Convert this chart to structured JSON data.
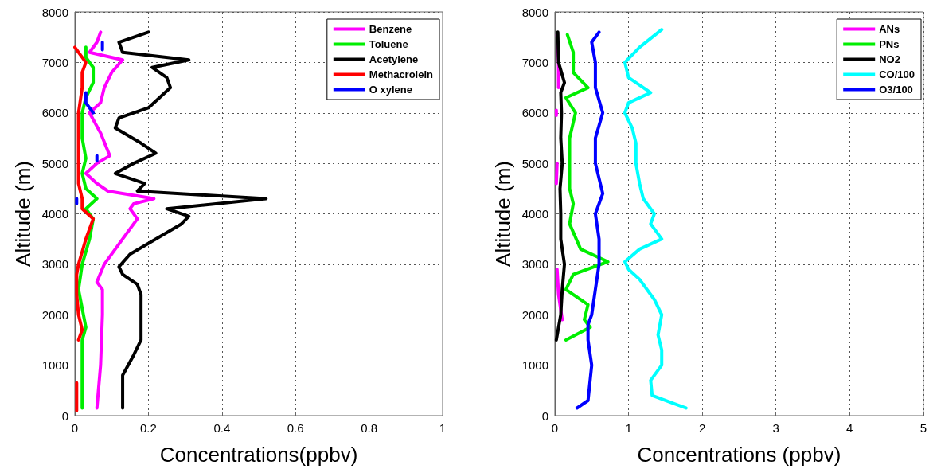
{
  "chart_data": [
    {
      "type": "line",
      "xlabel": "Concentrations(ppbv)",
      "ylabel": "Altitude (m)",
      "xlim": [
        0,
        1
      ],
      "xticks": [
        0,
        0.2,
        0.4,
        0.6,
        0.8,
        1
      ],
      "ylim": [
        0,
        8000
      ],
      "yticks": [
        0,
        1000,
        2000,
        3000,
        4000,
        5000,
        6000,
        7000,
        8000
      ],
      "grid": true,
      "legend": "top right",
      "marker": "none",
      "line_style": "solid",
      "series": [
        {
          "name": "Benzene",
          "color": "#ff00ff",
          "x": [
            0.06,
            0.07,
            0.075,
            0.075,
            0.06,
            0.08,
            0.13,
            0.16,
            0.17,
            0.15,
            0.16,
            0.215,
            0.09,
            0.06,
            0.03,
            0.06,
            0.095,
            0.07,
            0.04,
            0.07,
            0.08,
            0.1,
            0.13,
            0.04,
            0.06,
            0.07
          ],
          "values": [
            150,
            1000,
            2000,
            2500,
            2650,
            3000,
            3500,
            3800,
            3900,
            4100,
            4200,
            4300,
            4450,
            4600,
            4800,
            5000,
            5150,
            5600,
            6000,
            6200,
            6500,
            6800,
            7050,
            7200,
            7400,
            7600
          ]
        },
        {
          "name": "Toluene",
          "color": "#00ee00",
          "x": [
            0.02,
            0.02,
            0.03,
            0.01,
            0.02,
            0.04,
            0.05,
            0.03,
            0.06,
            0.03,
            0.02,
            0.03,
            0.02,
            0.02,
            0.03,
            0.05,
            0.05,
            0.03,
            0.03
          ],
          "values": [
            150,
            1500,
            1750,
            2500,
            3000,
            3500,
            3900,
            4100,
            4300,
            4500,
            4800,
            5100,
            5500,
            6000,
            6300,
            6600,
            6900,
            7100,
            7300
          ]
        },
        {
          "name": "Acetylene",
          "color": "#000000",
          "x": [
            0.13,
            0.13,
            0.16,
            0.18,
            0.18,
            0.18,
            0.17,
            0.13,
            0.12,
            0.15,
            0.22,
            0.29,
            0.31,
            0.25,
            0.52,
            0.17,
            0.19,
            0.11,
            0.16,
            0.22,
            0.18,
            0.11,
            0.12,
            0.2,
            0.23,
            0.26,
            0.25,
            0.21,
            0.31,
            0.13,
            0.12,
            0.2
          ],
          "values": [
            150,
            800,
            1200,
            1500,
            2000,
            2400,
            2600,
            2800,
            2950,
            3200,
            3500,
            3800,
            3950,
            4100,
            4300,
            4450,
            4600,
            4800,
            5000,
            5200,
            5400,
            5700,
            5900,
            6100,
            6300,
            6500,
            6700,
            6900,
            7050,
            7200,
            7400,
            7600
          ]
        },
        {
          "name": "Methacrolein",
          "color": "#ff0000",
          "x": [
            0.005,
            0.005,
            null,
            0.01,
            0.02,
            0.01,
            0.005,
            0.005,
            0.01,
            0.03,
            0.05,
            0.02,
            0.02,
            0.01,
            0.01,
            0.01,
            0.01,
            0.02,
            0.02,
            0.03,
            0.0
          ],
          "values": [
            100,
            650,
            null,
            1500,
            1700,
            2000,
            2400,
            2800,
            3000,
            3500,
            3900,
            4100,
            4300,
            4600,
            5000,
            5500,
            6000,
            6500,
            6800,
            7000,
            7300
          ]
        },
        {
          "name": "O xylene",
          "color": "#0000ff",
          "x": [
            0.005,
            0.005,
            null,
            0.06,
            0.06,
            null,
            0.05,
            0.03,
            0.03,
            null,
            0.075,
            0.075
          ],
          "values": [
            4200,
            4300,
            null,
            5050,
            5150,
            null,
            6000,
            6200,
            6400,
            null,
            7250,
            7400
          ]
        }
      ]
    },
    {
      "type": "line",
      "xlabel": "Concentrations (ppbv)",
      "ylabel": "Altitude (m)",
      "xlim": [
        0,
        5
      ],
      "xticks": [
        0,
        1,
        2,
        3,
        4,
        5
      ],
      "ylim": [
        0,
        8000
      ],
      "yticks": [
        0,
        1000,
        2000,
        3000,
        4000,
        5000,
        6000,
        7000,
        8000
      ],
      "grid": true,
      "legend": "top right",
      "marker": "none",
      "line_style": "solid",
      "series": [
        {
          "name": "ANs",
          "color": "#ff00ff",
          "x": [
            0.1,
            0.05,
            0.03,
            null,
            0.02,
            0.03,
            null,
            0.02,
            0.02,
            null,
            0.05,
            0.05,
            0.03
          ],
          "values": [
            1900,
            2400,
            2900,
            null,
            4600,
            5000,
            null,
            5950,
            6050,
            null,
            6500,
            7000,
            7550
          ]
        },
        {
          "name": "PNs",
          "color": "#00ee00",
          "x": [
            0.15,
            0.48,
            0.4,
            0.45,
            0.15,
            0.25,
            0.72,
            0.35,
            0.2,
            0.25,
            0.2,
            0.2,
            0.2,
            0.28,
            0.15,
            0.45,
            0.25,
            0.25,
            0.17
          ],
          "values": [
            1500,
            1750,
            1900,
            2200,
            2500,
            2800,
            3050,
            3300,
            3800,
            4200,
            4500,
            5000,
            5500,
            6000,
            6300,
            6500,
            6800,
            7200,
            7550
          ]
        },
        {
          "name": "NO2",
          "color": "#000000",
          "x": [
            0.02,
            0.08,
            0.1,
            0.13,
            0.08,
            0.08,
            0.07,
            0.1,
            0.08,
            0.09,
            0.08,
            0.13,
            0.05,
            0.04
          ],
          "values": [
            1500,
            2000,
            2500,
            3000,
            3500,
            4000,
            4500,
            5000,
            5500,
            6000,
            6400,
            6600,
            7000,
            7600
          ]
        },
        {
          "name": "CO/100",
          "color": "#00ffff",
          "x": [
            1.78,
            1.32,
            1.3,
            1.45,
            1.45,
            1.4,
            1.45,
            1.35,
            1.15,
            1.0,
            0.95,
            1.15,
            1.45,
            1.3,
            1.35,
            1.2,
            1.15,
            1.1,
            1.1,
            1.05,
            0.95,
            1.0,
            1.3,
            1.0,
            0.95,
            1.15,
            1.45
          ],
          "values": [
            150,
            400,
            700,
            1000,
            1300,
            1600,
            2000,
            2300,
            2700,
            2900,
            3050,
            3300,
            3500,
            3800,
            4000,
            4300,
            4600,
            5000,
            5400,
            5700,
            6000,
            6200,
            6400,
            6700,
            7000,
            7300,
            7650
          ]
        },
        {
          "name": "O3/100",
          "color": "#0000ff",
          "x": [
            0.3,
            0.45,
            0.5,
            0.45,
            0.45,
            0.5,
            0.55,
            0.6,
            0.6,
            0.55,
            0.65,
            0.55,
            0.55,
            0.65,
            0.55,
            0.55,
            0.5,
            0.6
          ],
          "values": [
            150,
            300,
            1000,
            1500,
            1800,
            2000,
            2500,
            3000,
            3500,
            4000,
            4400,
            5000,
            5500,
            6000,
            6500,
            7000,
            7400,
            7600
          ]
        }
      ]
    }
  ]
}
